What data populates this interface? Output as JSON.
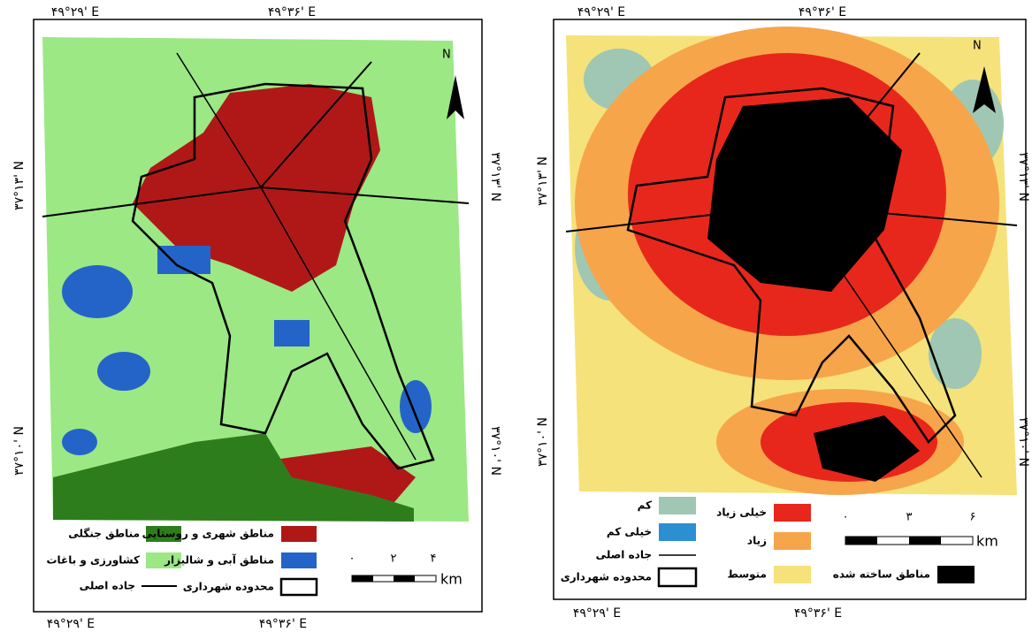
{
  "left_map": {
    "north": "N",
    "top_lon": [
      "۴۹°۲۹' E",
      "۴۹°۳۶' E"
    ],
    "bottom_lon": [
      "۴۹°۲۹' E",
      "۴۹°۳۶' E"
    ],
    "left_lat": [
      "۳۷°۱۳' N",
      "۳۷°۱۰' N"
    ],
    "right_lat": [
      "۳۷°۱۳' N",
      "۳۷°۱۰' N"
    ],
    "legend": {
      "forest": "مناطق جنگلی",
      "urban": "مناطق شهری و روستایی",
      "agriculture": "کشاورزی و باغات",
      "water": "مناطق آبی و شالیزار",
      "road": "جاده اصلی",
      "boundary": "محدوده شهرداری"
    },
    "scale": {
      "ticks": [
        "۰",
        "۲",
        "۴"
      ],
      "unit": "km"
    }
  },
  "right_map": {
    "north": "N",
    "top_lon": [
      "۴۹°۲۹' E",
      "۴۹°۳۶' E"
    ],
    "bottom_lon": [
      "۴۹°۲۹' E",
      "۴۹°۳۶' E"
    ],
    "left_lat": [
      "۳۷°۱۳' N",
      "۳۷°۱۰' N"
    ],
    "right_lat": [
      "۳۷°۱۳' N",
      "۳۷°۱۰' N"
    ],
    "legend": {
      "low": "کم",
      "very_high": "خیلی زیاد",
      "very_low": "خیلی کم",
      "high": "زیاد",
      "road": "جاده اصلی",
      "boundary": "محدوده شهرداری",
      "medium": "متوسط",
      "built": "مناطق ساخته شده"
    },
    "scale": {
      "ticks": [
        "۰",
        "۳",
        "۶"
      ],
      "unit": "km"
    }
  }
}
